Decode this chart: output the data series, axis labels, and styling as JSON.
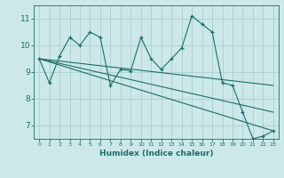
{
  "xlabel": "Humidex (Indice chaleur)",
  "bg_color": "#cce8e8",
  "grid_color": "#aacfcf",
  "line_color": "#1a6e6a",
  "xlim": [
    -0.5,
    23.5
  ],
  "ylim": [
    6.5,
    11.5
  ],
  "xtick_labels": [
    "0",
    "1",
    "2",
    "3",
    "4",
    "5",
    "6",
    "7",
    "8",
    "9",
    "10",
    "11",
    "12",
    "13",
    "14",
    "15",
    "16",
    "17",
    "18",
    "19",
    "20",
    "21",
    "22",
    "23"
  ],
  "yticks": [
    7,
    8,
    9,
    10,
    11
  ],
  "series": [
    {
      "x": [
        0,
        1,
        2,
        3,
        4,
        5,
        6,
        7,
        8,
        9,
        10,
        11,
        12,
        13,
        14,
        15,
        16,
        17,
        18,
        19,
        20,
        21,
        22,
        23
      ],
      "y": [
        9.5,
        8.6,
        9.6,
        10.3,
        10.0,
        10.5,
        10.3,
        8.5,
        9.1,
        9.05,
        10.3,
        9.5,
        9.1,
        9.5,
        9.9,
        11.1,
        10.8,
        10.5,
        8.6,
        8.5,
        7.5,
        6.5,
        6.6,
        6.8
      ],
      "has_markers": true
    },
    {
      "x": [
        0,
        23
      ],
      "y": [
        9.5,
        8.5
      ],
      "has_markers": false
    },
    {
      "x": [
        0,
        23
      ],
      "y": [
        9.5,
        7.5
      ],
      "has_markers": false
    },
    {
      "x": [
        0,
        23
      ],
      "y": [
        9.5,
        6.8
      ],
      "has_markers": false
    }
  ]
}
